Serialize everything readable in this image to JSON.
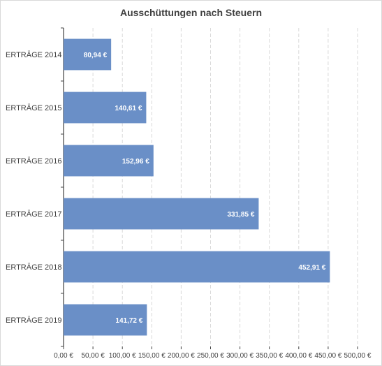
{
  "chart_data": {
    "type": "bar",
    "orientation": "horizontal",
    "title": "Ausschüttungen nach Steuern",
    "categories": [
      "ERTRÄGE 2014",
      "ERTRÄGE 2015",
      "ERTRÄGE 2016",
      "ERTRÄGE 2017",
      "ERTRÄGE 2018",
      "ERTRÄGE 2019"
    ],
    "values": [
      80.94,
      140.61,
      152.96,
      331.85,
      452.91,
      141.72
    ],
    "data_labels": [
      "80,94 €",
      "140,61 €",
      "152,96 €",
      "331,85 €",
      "452,91 €",
      "141,72 €"
    ],
    "x_ticks": [
      0,
      50,
      100,
      150,
      200,
      250,
      300,
      350,
      400,
      450,
      500
    ],
    "x_tick_labels": [
      "0,00 €",
      "50,00 €",
      "100,00 €",
      "150,00 €",
      "200,00 €",
      "250,00 €",
      "300,00 €",
      "350,00 €",
      "400,00 €",
      "450,00 €",
      "500,00 €"
    ],
    "xlim": [
      0,
      500
    ],
    "grid": true,
    "legend": "none",
    "bar_color": "#6a8fc7",
    "xlabel": "",
    "ylabel": ""
  }
}
